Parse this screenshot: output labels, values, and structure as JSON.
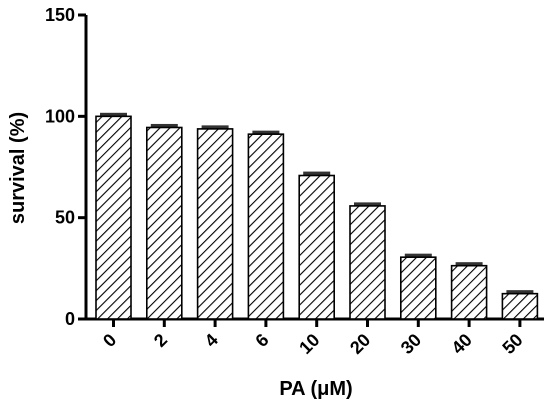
{
  "chart_data": {
    "type": "bar",
    "categories": [
      "0",
      "2",
      "4",
      "6",
      "10",
      "20",
      "30",
      "40",
      "50"
    ],
    "values": [
      100,
      94.5,
      93.8,
      91.2,
      70.8,
      55.8,
      30.5,
      26.3,
      12.5
    ],
    "errors": [
      1,
      1,
      1,
      1,
      1.2,
      1,
      1,
      1,
      1
    ],
    "xlabel": "PA (μM)",
    "ylabel": "survival (%)",
    "ylim": [
      0,
      150
    ],
    "yticks": [
      0,
      50,
      100,
      150
    ],
    "bar_fill": "hatched",
    "colors": {
      "bar_stroke": "#000000",
      "hatch": "#000000",
      "error_bar": "#333333",
      "axis": "#000000"
    }
  }
}
